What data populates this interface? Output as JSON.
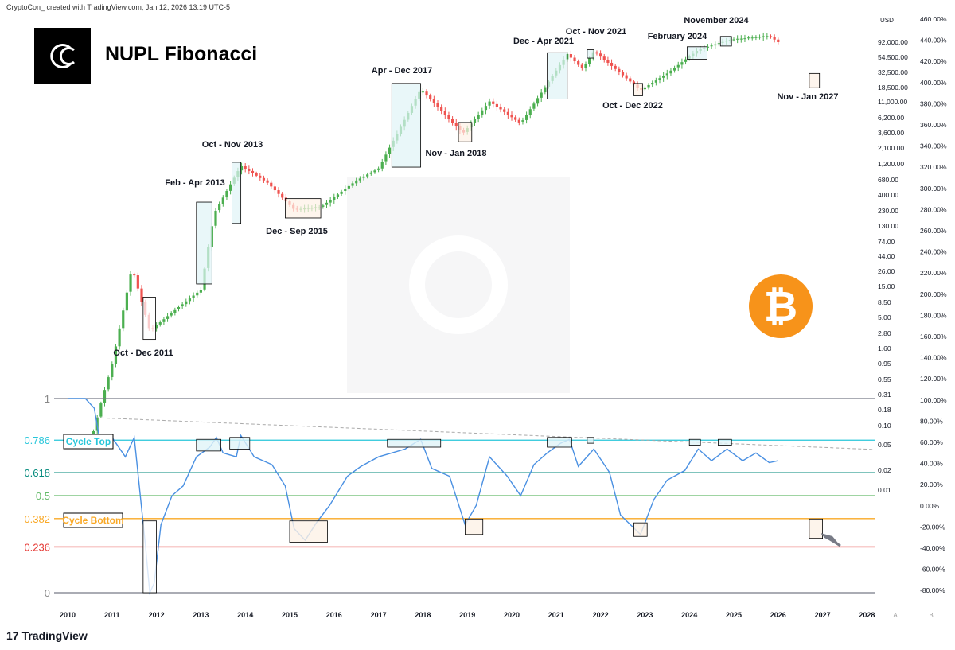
{
  "header": {
    "credit": "CryptoCon_ created with TradingView.com, Jan 12, 2026 13:19 UTC-5"
  },
  "title": "NUPL Fibonacci",
  "brand": {
    "footer": "TradingView"
  },
  "colors": {
    "up": "#26a69a",
    "up_candle": "#4caf50",
    "down": "#ef5350",
    "nupl_line": "#4a90e2",
    "cyan": "#26c6da",
    "teal": "#00897b",
    "green": "#66bb6a",
    "orange": "#f9a825",
    "red": "#e53935",
    "gray": "#787b86",
    "bitcoin": "#f7931a"
  },
  "chart_data": [
    {
      "type": "candlestick",
      "name": "BTC price (log)",
      "x_axis": {
        "ticks": [
          "2010",
          "2011",
          "2012",
          "2013",
          "2014",
          "2015",
          "2016",
          "2017",
          "2018",
          "2019",
          "2020",
          "2021",
          "2022",
          "2023",
          "2024",
          "2025",
          "2026",
          "2027",
          "2028"
        ]
      },
      "y_axis_price": {
        "unit": "USD",
        "scale": "log",
        "ticks": [
          "92,000.00",
          "54,500.00",
          "32,500.00",
          "18,500.00",
          "11,000.00",
          "6,200.00",
          "3,600.00",
          "2,100.00",
          "1,200.00",
          "680.00",
          "400.00",
          "230.00",
          "130.00",
          "74.00",
          "44.00",
          "26.00",
          "15.00",
          "8.50",
          "5.00",
          "2.80",
          "1.60",
          "0.95",
          "0.55",
          "0.31",
          "0.18",
          "0.10",
          "0.05",
          "0.02",
          "0.01"
        ]
      },
      "y_axis_percent": {
        "ticks": [
          "460.00%",
          "440.00%",
          "420.00%",
          "400.00%",
          "380.00%",
          "360.00%",
          "340.00%",
          "320.00%",
          "300.00%",
          "280.00%",
          "260.00%",
          "240.00%",
          "220.00%",
          "200.00%",
          "180.00%",
          "160.00%",
          "140.00%",
          "120.00%",
          "100.00%",
          "80.00%",
          "60.00%",
          "40.00%",
          "20.00%",
          "0.00%",
          "-20.00%",
          "-40.00%",
          "-60.00%",
          "-80.00%"
        ]
      },
      "approx_price_path": [
        {
          "x": 2010.5,
          "y": 0.05
        },
        {
          "x": 2010.8,
          "y": 0.3
        },
        {
          "x": 2011.0,
          "y": 0.9
        },
        {
          "x": 2011.45,
          "y": 29
        },
        {
          "x": 2011.85,
          "y": 3
        },
        {
          "x": 2012.5,
          "y": 7
        },
        {
          "x": 2013.0,
          "y": 13
        },
        {
          "x": 2013.3,
          "y": 200
        },
        {
          "x": 2013.9,
          "y": 1100
        },
        {
          "x": 2014.5,
          "y": 600
        },
        {
          "x": 2015.1,
          "y": 230
        },
        {
          "x": 2015.7,
          "y": 250
        },
        {
          "x": 2016.5,
          "y": 650
        },
        {
          "x": 2017.0,
          "y": 1000
        },
        {
          "x": 2017.95,
          "y": 17000
        },
        {
          "x": 2018.9,
          "y": 3500
        },
        {
          "x": 2019.5,
          "y": 11000
        },
        {
          "x": 2020.2,
          "y": 5000
        },
        {
          "x": 2021.25,
          "y": 60000
        },
        {
          "x": 2021.6,
          "y": 35000
        },
        {
          "x": 2021.85,
          "y": 67000
        },
        {
          "x": 2022.9,
          "y": 16500
        },
        {
          "x": 2023.5,
          "y": 30000
        },
        {
          "x": 2024.2,
          "y": 70000
        },
        {
          "x": 2024.9,
          "y": 100000
        },
        {
          "x": 2025.8,
          "y": 115000
        },
        {
          "x": 2026.0,
          "y": 92000
        }
      ],
      "annotations": [
        {
          "label": "Oct - Dec 2011"
        },
        {
          "label": "Feb - Apr 2013"
        },
        {
          "label": "Oct - Nov 2013"
        },
        {
          "label": "Dec - Sep 2015"
        },
        {
          "label": "Apr - Dec 2017"
        },
        {
          "label": "Nov - Jan 2018"
        },
        {
          "label": "Dec - Apr 2021"
        },
        {
          "label": "Oct - Nov 2021"
        },
        {
          "label": "Oct - Dec 2022"
        },
        {
          "label": "February 2024"
        },
        {
          "label": "November 2024"
        },
        {
          "label": "Nov - Jan 2027"
        }
      ]
    },
    {
      "type": "line",
      "name": "NUPL",
      "fib_levels": [
        {
          "label": "1",
          "value": 1.0
        },
        {
          "label": "0.786",
          "value": 0.786
        },
        {
          "label": "0.618",
          "value": 0.618
        },
        {
          "label": "0.5",
          "value": 0.5
        },
        {
          "label": "0.382",
          "value": 0.382
        },
        {
          "label": "0.236",
          "value": 0.236
        },
        {
          "label": "0",
          "value": 0.0
        }
      ],
      "zone_labels": [
        "Cycle Top",
        "Cycle Bottom"
      ],
      "approx_values": [
        {
          "x": 2010.0,
          "y": 1.0
        },
        {
          "x": 2010.4,
          "y": 1.0
        },
        {
          "x": 2010.6,
          "y": 0.95
        },
        {
          "x": 2010.75,
          "y": 0.75
        },
        {
          "x": 2011.0,
          "y": 0.8
        },
        {
          "x": 2011.3,
          "y": 0.7
        },
        {
          "x": 2011.5,
          "y": 0.8
        },
        {
          "x": 2011.75,
          "y": 0.25
        },
        {
          "x": 2011.85,
          "y": 0.0
        },
        {
          "x": 2011.95,
          "y": 0.05
        },
        {
          "x": 2012.1,
          "y": 0.35
        },
        {
          "x": 2012.35,
          "y": 0.5
        },
        {
          "x": 2012.6,
          "y": 0.55
        },
        {
          "x": 2012.9,
          "y": 0.7
        },
        {
          "x": 2013.2,
          "y": 0.75
        },
        {
          "x": 2013.35,
          "y": 0.8
        },
        {
          "x": 2013.5,
          "y": 0.72
        },
        {
          "x": 2013.8,
          "y": 0.7
        },
        {
          "x": 2013.9,
          "y": 0.81
        },
        {
          "x": 2014.2,
          "y": 0.7
        },
        {
          "x": 2014.6,
          "y": 0.66
        },
        {
          "x": 2014.9,
          "y": 0.55
        },
        {
          "x": 2015.1,
          "y": 0.33
        },
        {
          "x": 2015.35,
          "y": 0.27
        },
        {
          "x": 2015.6,
          "y": 0.36
        },
        {
          "x": 2015.9,
          "y": 0.45
        },
        {
          "x": 2016.3,
          "y": 0.6
        },
        {
          "x": 2016.6,
          "y": 0.65
        },
        {
          "x": 2017.0,
          "y": 0.7
        },
        {
          "x": 2017.3,
          "y": 0.72
        },
        {
          "x": 2017.6,
          "y": 0.74
        },
        {
          "x": 2017.95,
          "y": 0.79
        },
        {
          "x": 2018.2,
          "y": 0.64
        },
        {
          "x": 2018.6,
          "y": 0.6
        },
        {
          "x": 2018.95,
          "y": 0.35
        },
        {
          "x": 2019.2,
          "y": 0.45
        },
        {
          "x": 2019.5,
          "y": 0.7
        },
        {
          "x": 2019.9,
          "y": 0.6
        },
        {
          "x": 2020.2,
          "y": 0.5
        },
        {
          "x": 2020.5,
          "y": 0.66
        },
        {
          "x": 2020.8,
          "y": 0.72
        },
        {
          "x": 2021.1,
          "y": 0.77
        },
        {
          "x": 2021.3,
          "y": 0.79
        },
        {
          "x": 2021.5,
          "y": 0.65
        },
        {
          "x": 2021.85,
          "y": 0.74
        },
        {
          "x": 2022.2,
          "y": 0.62
        },
        {
          "x": 2022.45,
          "y": 0.4
        },
        {
          "x": 2022.9,
          "y": 0.3
        },
        {
          "x": 2023.2,
          "y": 0.48
        },
        {
          "x": 2023.5,
          "y": 0.58
        },
        {
          "x": 2023.9,
          "y": 0.63
        },
        {
          "x": 2024.2,
          "y": 0.74
        },
        {
          "x": 2024.5,
          "y": 0.68
        },
        {
          "x": 2024.85,
          "y": 0.74
        },
        {
          "x": 2025.2,
          "y": 0.68
        },
        {
          "x": 2025.5,
          "y": 0.72
        },
        {
          "x": 2025.8,
          "y": 0.67
        },
        {
          "x": 2026.0,
          "y": 0.68
        }
      ]
    }
  ],
  "axis_side": {
    "left_bottom_right": [
      "A",
      "B"
    ]
  }
}
